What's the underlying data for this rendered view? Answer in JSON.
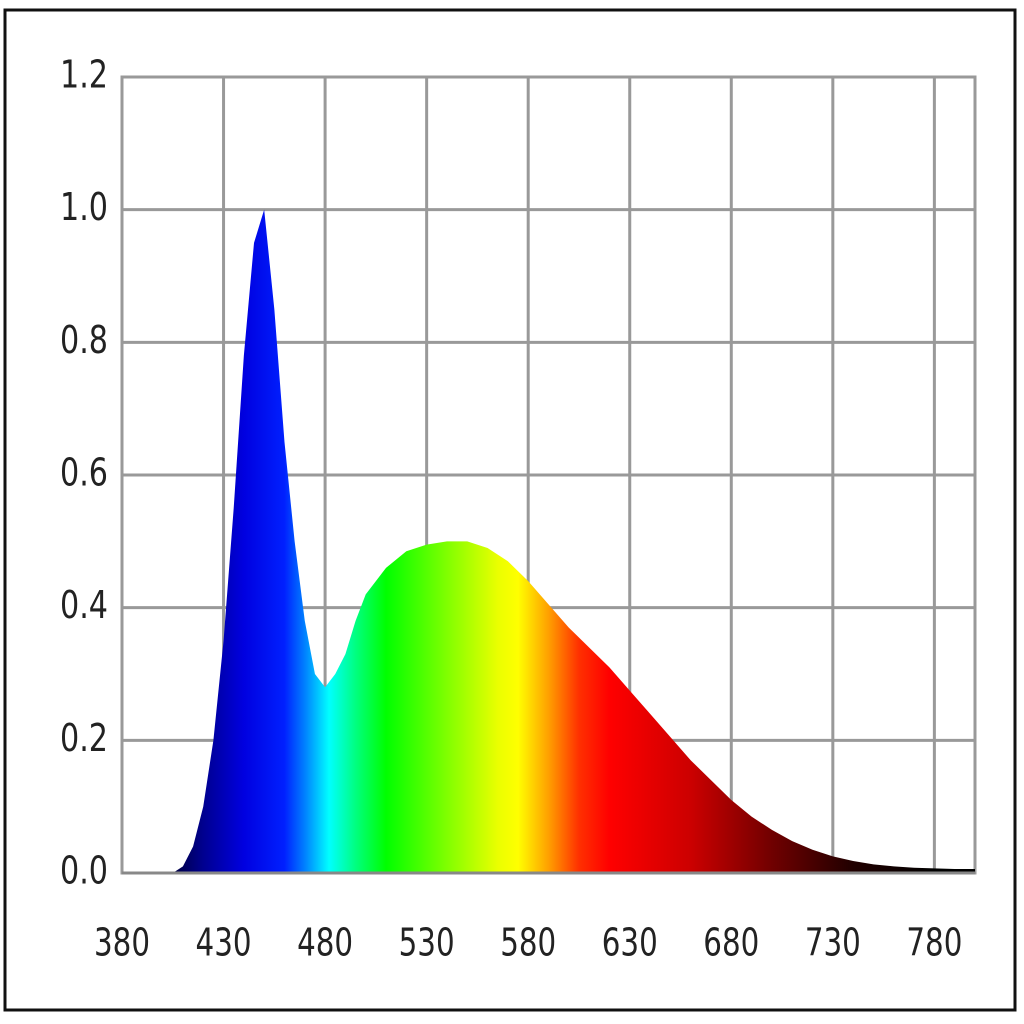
{
  "chart_data": {
    "type": "area",
    "x": [
      380,
      390,
      400,
      405,
      410,
      415,
      420,
      425,
      430,
      435,
      440,
      445,
      450,
      455,
      460,
      465,
      470,
      475,
      480,
      485,
      490,
      495,
      500,
      510,
      520,
      530,
      540,
      550,
      560,
      570,
      580,
      590,
      600,
      610,
      620,
      630,
      640,
      650,
      660,
      670,
      680,
      690,
      700,
      710,
      720,
      730,
      740,
      750,
      760,
      770,
      780,
      790,
      800
    ],
    "values": [
      0,
      0,
      0,
      0,
      0.01,
      0.04,
      0.1,
      0.2,
      0.35,
      0.55,
      0.78,
      0.95,
      1.0,
      0.85,
      0.65,
      0.5,
      0.38,
      0.3,
      0.28,
      0.3,
      0.33,
      0.38,
      0.42,
      0.46,
      0.485,
      0.495,
      0.5,
      0.5,
      0.49,
      0.47,
      0.44,
      0.405,
      0.37,
      0.34,
      0.31,
      0.275,
      0.24,
      0.205,
      0.17,
      0.14,
      0.11,
      0.085,
      0.065,
      0.048,
      0.035,
      0.025,
      0.018,
      0.013,
      0.01,
      0.008,
      0.007,
      0.006,
      0.006
    ],
    "xlim": [
      380,
      800
    ],
    "ylim": [
      0,
      1.2
    ],
    "xticks": [
      380,
      430,
      480,
      530,
      580,
      630,
      680,
      730,
      780
    ],
    "yticks": [
      {
        "value": 0,
        "label": "0.0"
      },
      {
        "value": 0.2,
        "label": "0.2"
      },
      {
        "value": 0.4,
        "label": "0.4"
      },
      {
        "value": 0.6,
        "label": "0.6"
      },
      {
        "value": 0.8,
        "label": "0.8"
      },
      {
        "value": 1,
        "label": "1.0"
      },
      {
        "value": 1.2,
        "label": "1.2"
      }
    ],
    "grid": true
  }
}
